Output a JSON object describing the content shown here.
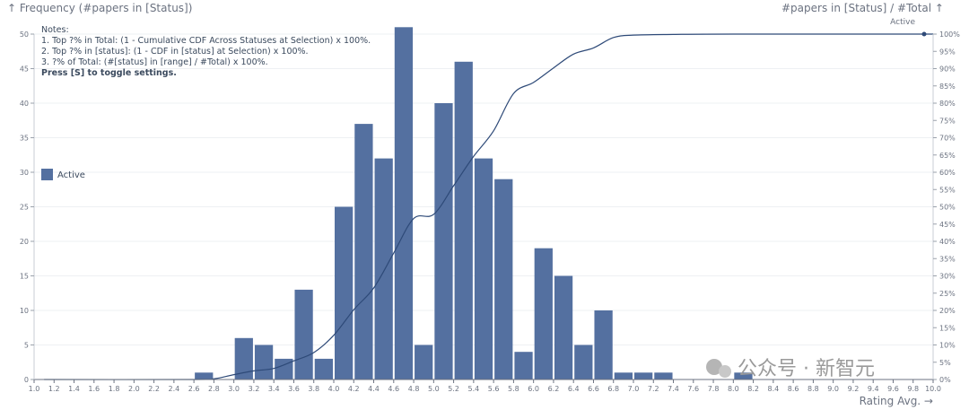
{
  "chart_data": {
    "type": "bar",
    "title_left": "↑ Frequency (#papers in [Status])",
    "title_right": "#papers in [Status] / #Total ↑",
    "xlabel": "Rating Avg. →",
    "series_label_top": "Active",
    "legend": {
      "label": "Active",
      "color": "#5470a0",
      "placement": "left"
    },
    "notes": [
      "Notes:",
      "1. Top ?% in Total: (1 - Cumulative CDF Across Statuses at Selection) x 100%.",
      "2. Top ?% in [status]: (1 - CDF in [status] at Selection) x 100%.",
      "3. ?% of Total: (#[status] in [range] / #Total) x 100%."
    ],
    "notes_bold": "Press [S] to toggle settings.",
    "xlim": [
      1.0,
      10.0
    ],
    "x_ticks": [
      "1.0",
      "1.2",
      "1.4",
      "1.6",
      "1.8",
      "2.0",
      "2.2",
      "2.4",
      "2.6",
      "2.8",
      "3.0",
      "3.2",
      "3.4",
      "3.6",
      "3.8",
      "4.0",
      "4.2",
      "4.4",
      "4.6",
      "4.8",
      "5.0",
      "5.2",
      "5.4",
      "5.6",
      "5.8",
      "6.0",
      "6.2",
      "6.4",
      "6.6",
      "6.8",
      "7.0",
      "7.2",
      "7.4",
      "7.6",
      "7.8",
      "8.0",
      "8.2",
      "8.4",
      "8.6",
      "8.8",
      "9.0",
      "9.2",
      "9.4",
      "9.6",
      "9.8",
      "10.0"
    ],
    "ylim": [
      0,
      50
    ],
    "y_ticks": [
      "0",
      "5",
      "10",
      "15",
      "20",
      "25",
      "30",
      "35",
      "40",
      "45",
      "50"
    ],
    "y2lim": [
      0,
      100
    ],
    "y2_ticks": [
      "0%",
      "5%",
      "10%",
      "15%",
      "20%",
      "25%",
      "30%",
      "35%",
      "40%",
      "45%",
      "50%",
      "55%",
      "60%",
      "65%",
      "70%",
      "75%",
      "80%",
      "85%",
      "90%",
      "95%",
      "100%"
    ],
    "bar_width": 0.2,
    "bars": [
      {
        "x": 2.7,
        "value": 1
      },
      {
        "x": 3.1,
        "value": 6
      },
      {
        "x": 3.3,
        "value": 5
      },
      {
        "x": 3.5,
        "value": 3
      },
      {
        "x": 3.7,
        "value": 13
      },
      {
        "x": 3.9,
        "value": 3
      },
      {
        "x": 4.1,
        "value": 25
      },
      {
        "x": 4.3,
        "value": 37
      },
      {
        "x": 4.5,
        "value": 32
      },
      {
        "x": 4.7,
        "value": 51
      },
      {
        "x": 4.9,
        "value": 5
      },
      {
        "x": 5.1,
        "value": 40
      },
      {
        "x": 5.3,
        "value": 46
      },
      {
        "x": 5.5,
        "value": 32
      },
      {
        "x": 5.7,
        "value": 29
      },
      {
        "x": 5.9,
        "value": 4
      },
      {
        "x": 6.1,
        "value": 19
      },
      {
        "x": 6.3,
        "value": 15
      },
      {
        "x": 6.5,
        "value": 5
      },
      {
        "x": 6.7,
        "value": 10
      },
      {
        "x": 6.9,
        "value": 1
      },
      {
        "x": 7.1,
        "value": 1
      },
      {
        "x": 7.3,
        "value": 1
      },
      {
        "x": 8.1,
        "value": 1
      }
    ],
    "cdf_line": [
      [
        1.1,
        0
      ],
      [
        2.6,
        0
      ],
      [
        2.8,
        0.2
      ],
      [
        3.0,
        1.4
      ],
      [
        3.2,
        2.5
      ],
      [
        3.4,
        3.2
      ],
      [
        3.6,
        5.4
      ],
      [
        3.8,
        7.8
      ],
      [
        4.0,
        12.8
      ],
      [
        4.2,
        20.2
      ],
      [
        4.4,
        26.5
      ],
      [
        4.6,
        36.6
      ],
      [
        4.8,
        46.6
      ],
      [
        5.0,
        47.8
      ],
      [
        5.2,
        56.1
      ],
      [
        5.4,
        64.6
      ],
      [
        5.6,
        72.0
      ],
      [
        5.8,
        82.8
      ],
      [
        6.0,
        86.0
      ],
      [
        6.2,
        90.2
      ],
      [
        6.4,
        94.2
      ],
      [
        6.6,
        96.0
      ],
      [
        6.8,
        99.0
      ],
      [
        7.0,
        99.7
      ],
      [
        7.4,
        99.9
      ],
      [
        8.0,
        100
      ],
      [
        10.0,
        100
      ]
    ],
    "line_color": "#2e4a78",
    "watermark": "公众号 · 新智元"
  }
}
